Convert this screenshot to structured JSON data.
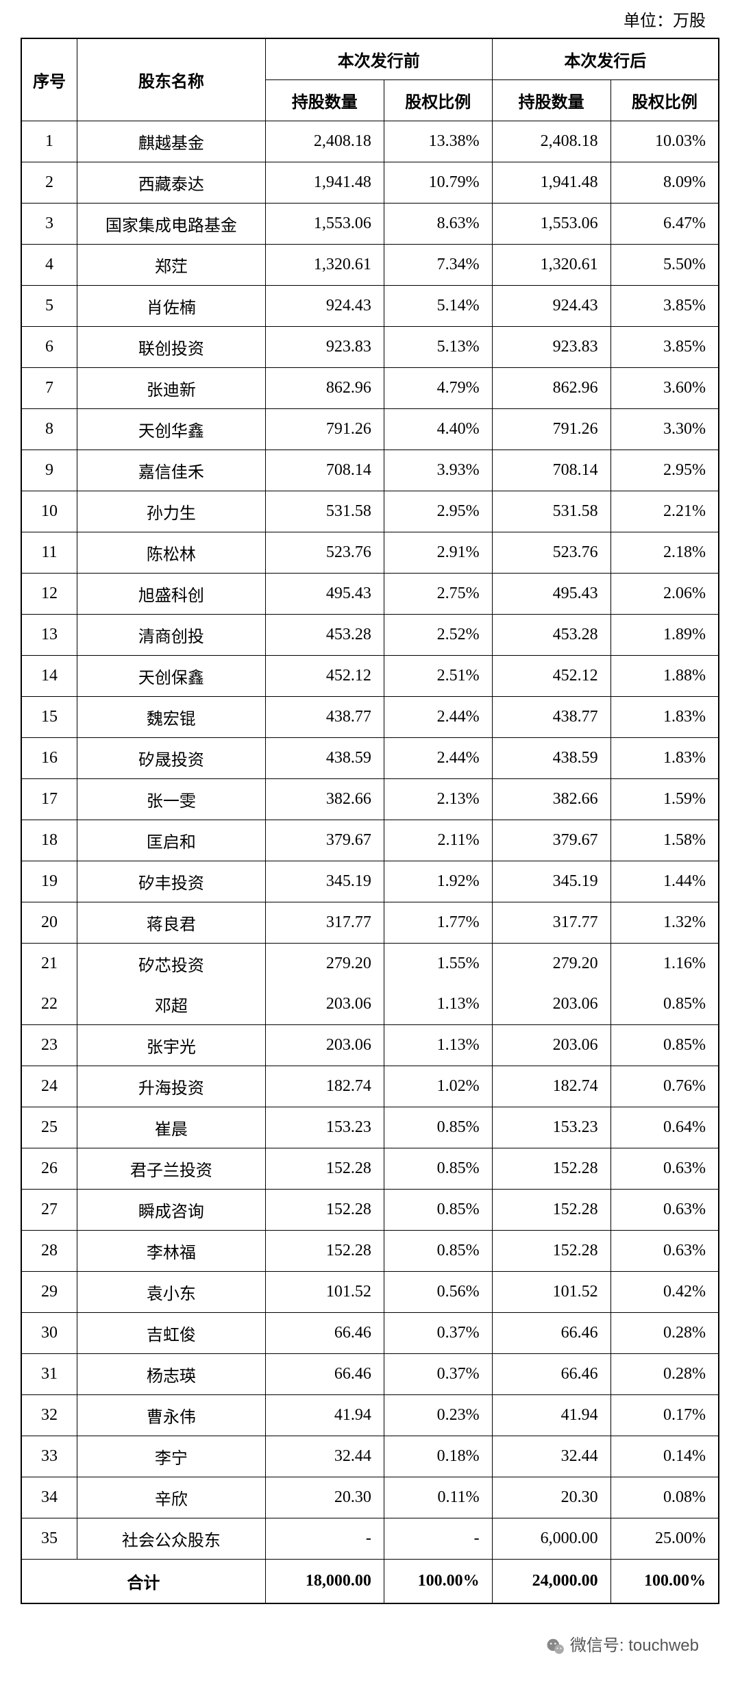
{
  "unit_label": "单位：万股",
  "table": {
    "header": {
      "seq": "序号",
      "name": "股东名称",
      "group_before": "本次发行前",
      "group_after": "本次发行后",
      "num": "持股数量",
      "pct": "股权比例"
    },
    "rows": [
      {
        "seq": "1",
        "name": "麒越基金",
        "b_num": "2,408.18",
        "b_pct": "13.38%",
        "a_num": "2,408.18",
        "a_pct": "10.03%",
        "merged": false
      },
      {
        "seq": "2",
        "name": "西藏泰达",
        "b_num": "1,941.48",
        "b_pct": "10.79%",
        "a_num": "1,941.48",
        "a_pct": "8.09%",
        "merged": false
      },
      {
        "seq": "3",
        "name": "国家集成电路基金",
        "b_num": "1,553.06",
        "b_pct": "8.63%",
        "a_num": "1,553.06",
        "a_pct": "6.47%",
        "merged": false
      },
      {
        "seq": "4",
        "name": "郑茳",
        "b_num": "1,320.61",
        "b_pct": "7.34%",
        "a_num": "1,320.61",
        "a_pct": "5.50%",
        "merged": false
      },
      {
        "seq": "5",
        "name": "肖佐楠",
        "b_num": "924.43",
        "b_pct": "5.14%",
        "a_num": "924.43",
        "a_pct": "3.85%",
        "merged": false
      },
      {
        "seq": "6",
        "name": "联创投资",
        "b_num": "923.83",
        "b_pct": "5.13%",
        "a_num": "923.83",
        "a_pct": "3.85%",
        "merged": false
      },
      {
        "seq": "7",
        "name": "张迪新",
        "b_num": "862.96",
        "b_pct": "4.79%",
        "a_num": "862.96",
        "a_pct": "3.60%",
        "merged": false
      },
      {
        "seq": "8",
        "name": "天创华鑫",
        "b_num": "791.26",
        "b_pct": "4.40%",
        "a_num": "791.26",
        "a_pct": "3.30%",
        "merged": false
      },
      {
        "seq": "9",
        "name": "嘉信佳禾",
        "b_num": "708.14",
        "b_pct": "3.93%",
        "a_num": "708.14",
        "a_pct": "2.95%",
        "merged": false
      },
      {
        "seq": "10",
        "name": "孙力生",
        "b_num": "531.58",
        "b_pct": "2.95%",
        "a_num": "531.58",
        "a_pct": "2.21%",
        "merged": false
      },
      {
        "seq": "11",
        "name": "陈松林",
        "b_num": "523.76",
        "b_pct": "2.91%",
        "a_num": "523.76",
        "a_pct": "2.18%",
        "merged": false
      },
      {
        "seq": "12",
        "name": "旭盛科创",
        "b_num": "495.43",
        "b_pct": "2.75%",
        "a_num": "495.43",
        "a_pct": "2.06%",
        "merged": false
      },
      {
        "seq": "13",
        "name": "清商创投",
        "b_num": "453.28",
        "b_pct": "2.52%",
        "a_num": "453.28",
        "a_pct": "1.89%",
        "merged": false
      },
      {
        "seq": "14",
        "name": "天创保鑫",
        "b_num": "452.12",
        "b_pct": "2.51%",
        "a_num": "452.12",
        "a_pct": "1.88%",
        "merged": false
      },
      {
        "seq": "15",
        "name": "魏宏锟",
        "b_num": "438.77",
        "b_pct": "2.44%",
        "a_num": "438.77",
        "a_pct": "1.83%",
        "merged": false
      },
      {
        "seq": "16",
        "name": "矽晟投资",
        "b_num": "438.59",
        "b_pct": "2.44%",
        "a_num": "438.59",
        "a_pct": "1.83%",
        "merged": false
      },
      {
        "seq": "17",
        "name": "张一雯",
        "b_num": "382.66",
        "b_pct": "2.13%",
        "a_num": "382.66",
        "a_pct": "1.59%",
        "merged": false
      },
      {
        "seq": "18",
        "name": "匡启和",
        "b_num": "379.67",
        "b_pct": "2.11%",
        "a_num": "379.67",
        "a_pct": "1.58%",
        "merged": false
      },
      {
        "seq": "19",
        "name": "矽丰投资",
        "b_num": "345.19",
        "b_pct": "1.92%",
        "a_num": "345.19",
        "a_pct": "1.44%",
        "merged": false
      },
      {
        "seq": "20",
        "name": "蒋良君",
        "b_num": "317.77",
        "b_pct": "1.77%",
        "a_num": "317.77",
        "a_pct": "1.32%",
        "merged": false
      },
      {
        "seq": "21",
        "name": "矽芯投资",
        "b_num": "279.20",
        "b_pct": "1.55%",
        "a_num": "279.20",
        "a_pct": "1.16%",
        "merged": "first"
      },
      {
        "seq": "22",
        "name": "邓超",
        "b_num": "203.06",
        "b_pct": "1.13%",
        "a_num": "203.06",
        "a_pct": "0.85%",
        "merged": "second"
      },
      {
        "seq": "23",
        "name": "张宇光",
        "b_num": "203.06",
        "b_pct": "1.13%",
        "a_num": "203.06",
        "a_pct": "0.85%",
        "merged": false
      },
      {
        "seq": "24",
        "name": "升海投资",
        "b_num": "182.74",
        "b_pct": "1.02%",
        "a_num": "182.74",
        "a_pct": "0.76%",
        "merged": false
      },
      {
        "seq": "25",
        "name": "崔晨",
        "b_num": "153.23",
        "b_pct": "0.85%",
        "a_num": "153.23",
        "a_pct": "0.64%",
        "merged": false
      },
      {
        "seq": "26",
        "name": "君子兰投资",
        "b_num": "152.28",
        "b_pct": "0.85%",
        "a_num": "152.28",
        "a_pct": "0.63%",
        "merged": false
      },
      {
        "seq": "27",
        "name": "瞬成咨询",
        "b_num": "152.28",
        "b_pct": "0.85%",
        "a_num": "152.28",
        "a_pct": "0.63%",
        "merged": false
      },
      {
        "seq": "28",
        "name": "李林福",
        "b_num": "152.28",
        "b_pct": "0.85%",
        "a_num": "152.28",
        "a_pct": "0.63%",
        "merged": false
      },
      {
        "seq": "29",
        "name": "袁小东",
        "b_num": "101.52",
        "b_pct": "0.56%",
        "a_num": "101.52",
        "a_pct": "0.42%",
        "merged": false
      },
      {
        "seq": "30",
        "name": "吉虹俊",
        "b_num": "66.46",
        "b_pct": "0.37%",
        "a_num": "66.46",
        "a_pct": "0.28%",
        "merged": false
      },
      {
        "seq": "31",
        "name": "杨志瑛",
        "b_num": "66.46",
        "b_pct": "0.37%",
        "a_num": "66.46",
        "a_pct": "0.28%",
        "merged": false
      },
      {
        "seq": "32",
        "name": "曹永伟",
        "b_num": "41.94",
        "b_pct": "0.23%",
        "a_num": "41.94",
        "a_pct": "0.17%",
        "merged": false
      },
      {
        "seq": "33",
        "name": "李宁",
        "b_num": "32.44",
        "b_pct": "0.18%",
        "a_num": "32.44",
        "a_pct": "0.14%",
        "merged": false
      },
      {
        "seq": "34",
        "name": "辛欣",
        "b_num": "20.30",
        "b_pct": "0.11%",
        "a_num": "20.30",
        "a_pct": "0.08%",
        "merged": false
      },
      {
        "seq": "35",
        "name": "社会公众股东",
        "b_num": "-",
        "b_pct": "-",
        "a_num": "6,000.00",
        "a_pct": "25.00%",
        "merged": false
      }
    ],
    "total": {
      "label": "合计",
      "b_num": "18,000.00",
      "b_pct": "100.00%",
      "a_num": "24,000.00",
      "a_pct": "100.00%"
    }
  },
  "footer": {
    "prefix": "微信号: ",
    "account": "touchweb"
  }
}
